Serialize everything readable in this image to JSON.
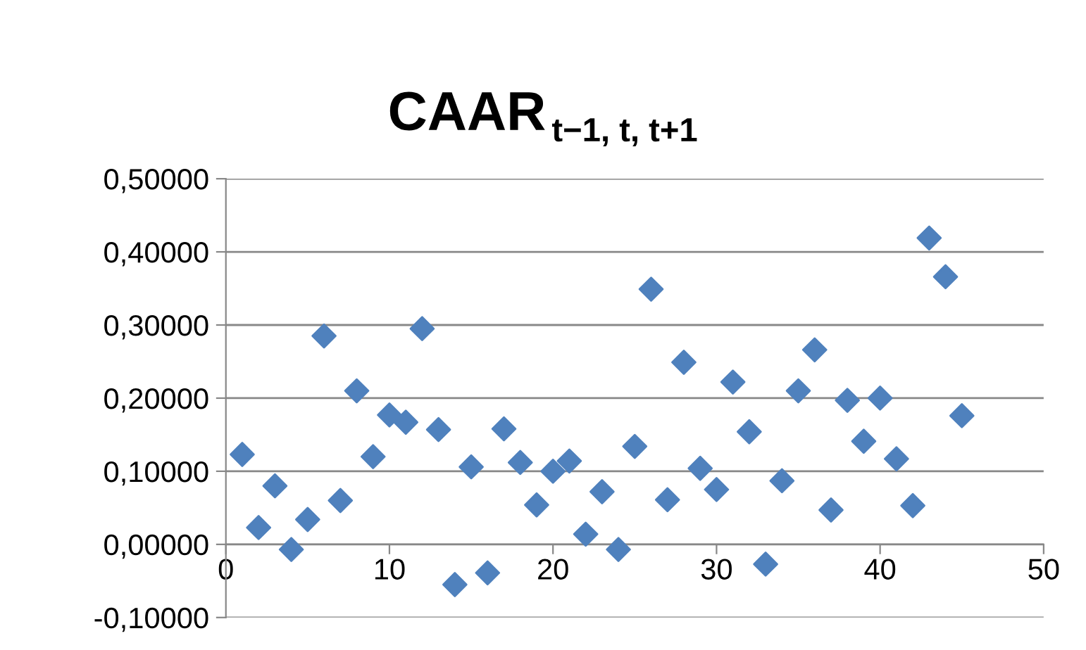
{
  "chart_data": {
    "type": "scatter",
    "title": "CAAR$_{t−1, t, t+1}$",
    "marker": "diamond",
    "grid": "y",
    "x": [
      1,
      2,
      3,
      4,
      5,
      6,
      7,
      8,
      9,
      10,
      11,
      12,
      13,
      14,
      15,
      16,
      17,
      18,
      19,
      20,
      21,
      22,
      23,
      24,
      25,
      26,
      27,
      28,
      29,
      30,
      31,
      32,
      33,
      34,
      35,
      36,
      37,
      38,
      39,
      40,
      41,
      42,
      43,
      44,
      45
    ],
    "series": [
      {
        "color": "#4f81bd",
        "values": [
          0.123,
          0.023,
          0.08,
          -0.007,
          0.034,
          0.285,
          0.06,
          0.21,
          0.12,
          0.177,
          0.167,
          0.295,
          0.157,
          -0.055,
          0.106,
          -0.039,
          0.158,
          0.112,
          0.054,
          0.1,
          0.114,
          0.014,
          0.072,
          -0.007,
          0.134,
          0.349,
          0.061,
          0.249,
          0.104,
          0.075,
          0.222,
          0.154,
          -0.027,
          0.087,
          0.21,
          0.266,
          0.047,
          0.197,
          0.141,
          0.2,
          0.117,
          0.053,
          0.419,
          0.366,
          0.176
        ]
      }
    ],
    "xlim": [
      0,
      50
    ],
    "xticks": [
      0,
      10,
      20,
      30,
      40,
      50
    ],
    "ylim": [
      -0.1,
      0.5
    ],
    "yticks": [
      {
        "value": -0.1,
        "label": "-0,10000"
      },
      {
        "value": 0,
        "label": "0,00000"
      },
      {
        "value": 0.1,
        "label": "0,10000"
      },
      {
        "value": 0.2,
        "label": "0,20000"
      },
      {
        "value": 0.3,
        "label": "0,30000"
      },
      {
        "value": 0.4,
        "label": "0,40000"
      },
      {
        "value": 0.5,
        "label": "0,50000"
      }
    ]
  }
}
